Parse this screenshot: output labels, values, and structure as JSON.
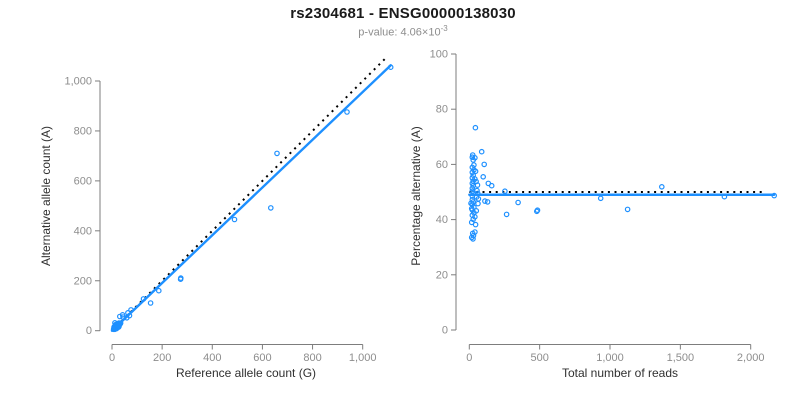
{
  "header": {
    "title": "rs2304681 - ENSG00000138030",
    "subtitle_prefix": "p-value: 4.06×10",
    "subtitle_exponent": "-3"
  },
  "colors": {
    "accent": "#1e90ff",
    "expected_line": "#000000",
    "axis": "#7d7d7d",
    "tick_label": "#8d8d8d",
    "axis_title": "#303030",
    "title": "#1a1a1a",
    "subtitle": "#8d8d8d",
    "background": "#ffffff"
  },
  "samples_note": "each sample = [total_reads, percent_alternative]",
  "samples": [
    [
      43,
      73.3
    ],
    [
      24,
      63.4
    ],
    [
      21,
      62.6
    ],
    [
      40,
      62.4
    ],
    [
      28,
      61.6
    ],
    [
      33,
      59.8
    ],
    [
      21,
      58.9
    ],
    [
      33,
      58.0
    ],
    [
      21,
      57.1
    ],
    [
      28,
      56.1
    ],
    [
      45,
      57.5
    ],
    [
      21,
      55.1
    ],
    [
      40,
      54.7
    ],
    [
      28,
      54.0
    ],
    [
      48,
      53.8
    ],
    [
      21,
      53.1
    ],
    [
      28,
      52.3
    ],
    [
      58,
      52.5
    ],
    [
      21,
      51.3
    ],
    [
      55,
      50.5
    ],
    [
      21,
      50.3
    ],
    [
      28,
      49.4
    ],
    [
      60,
      49.5
    ],
    [
      21,
      48.5
    ],
    [
      52,
      48.2
    ],
    [
      21,
      47.2
    ],
    [
      28,
      46.4
    ],
    [
      65,
      47.5
    ],
    [
      12,
      45.9
    ],
    [
      21,
      45.5
    ],
    [
      33,
      44.5
    ],
    [
      17,
      44.0
    ],
    [
      62,
      45.8
    ],
    [
      21,
      43.5
    ],
    [
      33,
      42.5
    ],
    [
      50,
      43.2
    ],
    [
      21,
      41.6
    ],
    [
      40,
      41.0
    ],
    [
      28,
      40.1
    ],
    [
      17,
      39.0
    ],
    [
      45,
      38.2
    ],
    [
      24,
      35.0
    ],
    [
      40,
      35.5
    ],
    [
      30,
      34.2
    ],
    [
      17,
      33.5
    ],
    [
      26,
      33.0
    ],
    [
      88,
      64.6
    ],
    [
      106,
      60.0
    ],
    [
      99,
      55.5
    ],
    [
      135,
      53.1
    ],
    [
      159,
      52.3
    ],
    [
      111,
      46.7
    ],
    [
      130,
      46.4
    ],
    [
      253,
      50.3
    ],
    [
      347,
      46.2
    ],
    [
      265,
      41.9
    ],
    [
      480,
      43.0
    ],
    [
      485,
      43.4
    ],
    [
      934,
      47.7
    ],
    [
      1125,
      43.7
    ],
    [
      1368,
      51.9
    ],
    [
      1813,
      48.3
    ],
    [
      2167,
      48.7
    ]
  ],
  "chart_data": [
    {
      "type": "scatter",
      "mode": "allele_counts",
      "points_rule": "x = reads*(100-pct)/100, y = reads*pct/100, from samples",
      "xlabel": "Reference allele count (G)",
      "ylabel": "Alternative allele count (A)",
      "xlim": [
        0,
        1115
      ],
      "ylim": [
        0,
        1108
      ],
      "grid": false,
      "xticks": {
        "values": [
          0,
          200,
          400,
          600,
          800,
          1000
        ],
        "labels": [
          "0",
          "200",
          "400",
          "600",
          "800",
          "1,000"
        ]
      },
      "yticks": {
        "values": [
          0,
          200,
          400,
          600,
          800,
          1000
        ],
        "labels": [
          "0",
          "200",
          "400",
          "600",
          "800",
          "1,000"
        ]
      },
      "lines": [
        {
          "name": "expected-identity-line",
          "style": "dotted",
          "color": "#000000",
          "x": [
            0,
            1100
          ],
          "y": [
            0,
            1100
          ]
        },
        {
          "name": "fit-line",
          "style": "solid",
          "color": "#1e90ff",
          "x": [
            0,
            1112
          ],
          "y": [
            0,
            1063
          ]
        }
      ]
    },
    {
      "type": "scatter",
      "mode": "reads_vs_pct",
      "points_rule": "x = reads, y = pct, from samples",
      "xlabel": "Total number of reads",
      "ylabel": "Percentage alternative (A)",
      "xlim": [
        0,
        2240
      ],
      "ylim": [
        0,
        100
      ],
      "grid": false,
      "xticks": {
        "values": [
          0,
          500,
          1000,
          1500,
          2000
        ],
        "labels": [
          "0",
          "500",
          "1,000",
          "1,500",
          "2,000"
        ]
      },
      "yticks": {
        "values": [
          0,
          20,
          40,
          60,
          80,
          100
        ],
        "labels": [
          "0",
          "20",
          "40",
          "60",
          "80",
          "100"
        ]
      },
      "lines": [
        {
          "name": "expected-50pct-line",
          "style": "dotted",
          "color": "#000000",
          "x": [
            0,
            2100
          ],
          "y": [
            50,
            50
          ]
        },
        {
          "name": "fit-line",
          "style": "solid",
          "color": "#1e90ff",
          "x": [
            0,
            2167
          ],
          "y": [
            49,
            49
          ]
        }
      ]
    }
  ]
}
